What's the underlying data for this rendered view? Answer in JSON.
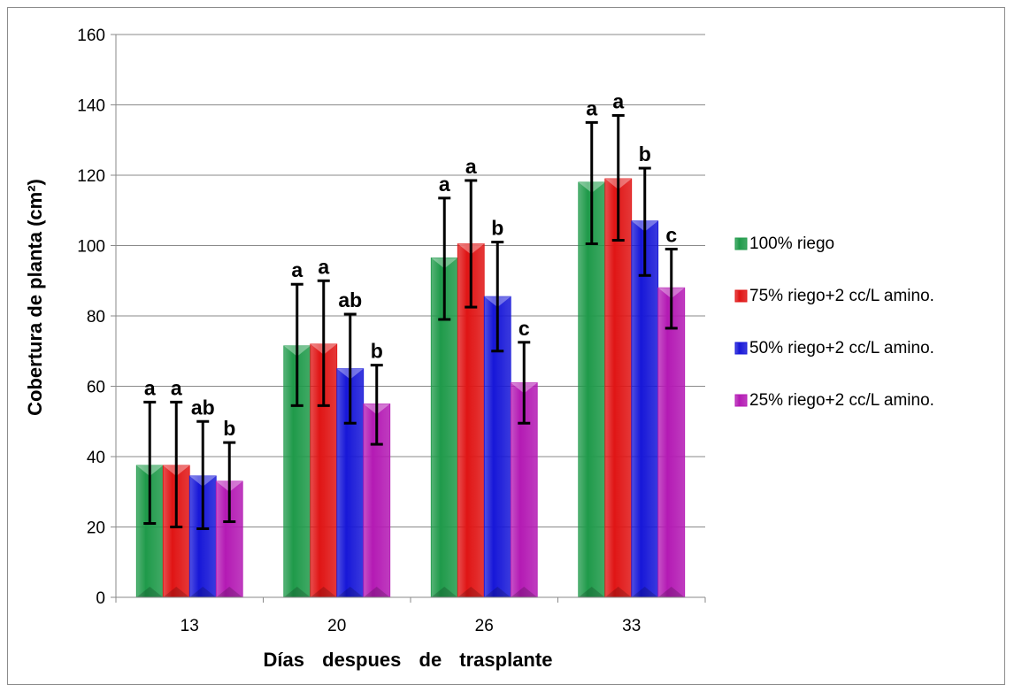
{
  "chart_data": {
    "type": "bar",
    "title": "",
    "xlabel": "Días despues de trasplante",
    "ylabel": "Cobertura de planta (cm²)",
    "ylim": [
      0,
      160
    ],
    "yticks": [
      0,
      20,
      40,
      60,
      80,
      100,
      120,
      140,
      160
    ],
    "grid": true,
    "legend_position": "right",
    "categories": [
      "13",
      "20",
      "26",
      "33"
    ],
    "series": [
      {
        "name": "100% riego",
        "color": "#1f9a4a",
        "values": [
          37.5,
          71.5,
          96.5,
          118
        ],
        "error_high": [
          55.5,
          89,
          113.5,
          135
        ],
        "error_low": [
          21,
          54.5,
          79,
          100.5
        ],
        "significance": [
          "a",
          "a",
          "a",
          "a"
        ]
      },
      {
        "name": "75% riego+2 cc/L amino.",
        "color": "#e01515",
        "values": [
          37.5,
          72,
          100.5,
          119
        ],
        "error_high": [
          55.5,
          90,
          118.5,
          137
        ],
        "error_low": [
          20,
          54.5,
          82.5,
          101.5
        ],
        "significance": [
          "a",
          "a",
          "a",
          "a"
        ]
      },
      {
        "name": "50% riego+2 cc/L amino.",
        "color": "#1717d8",
        "values": [
          34.5,
          65,
          85.5,
          107
        ],
        "error_high": [
          50,
          80.5,
          101,
          122
        ],
        "error_low": [
          19.5,
          49.5,
          70,
          91.5
        ],
        "significance": [
          "ab",
          "ab",
          "b",
          "b"
        ]
      },
      {
        "name": "25% riego+2 cc/L amino.",
        "color": "#b41ab4",
        "values": [
          33,
          55,
          61,
          88
        ],
        "error_high": [
          44,
          66,
          72.5,
          99
        ],
        "error_low": [
          21.5,
          43.5,
          49.5,
          76.5
        ],
        "significance": [
          "b",
          "b",
          "c",
          "c"
        ]
      }
    ]
  }
}
